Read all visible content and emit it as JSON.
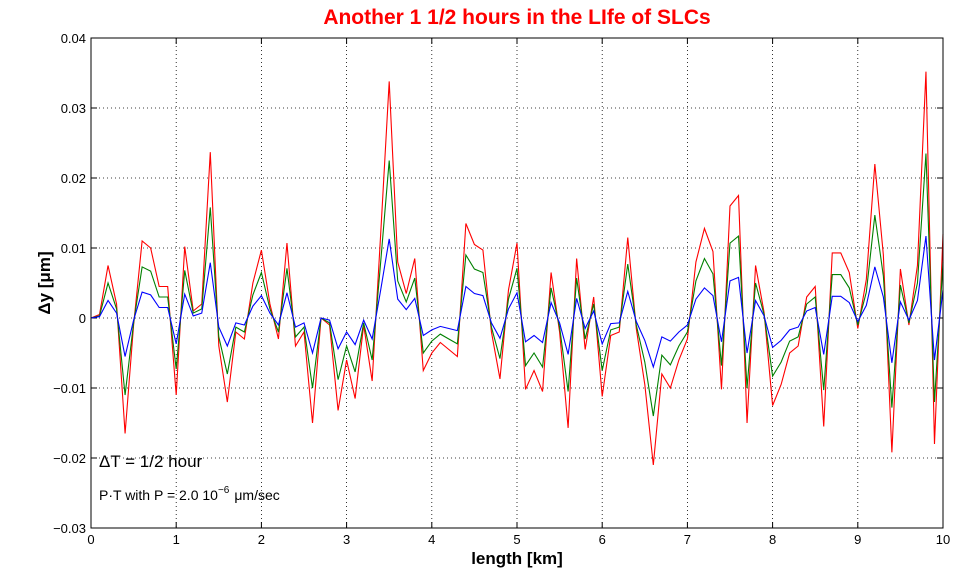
{
  "chart_data": {
    "type": "line",
    "title": "Another 1 1/2 hours in the LIfe of SLCs",
    "xlabel": "length [km]",
    "ylabel": "Δy [μm]",
    "annotations": [
      "ΔT = 1/2 hour",
      [
        "P·T with P = 2.0 10",
        "−6",
        "μm/sec"
      ]
    ],
    "x": [
      0,
      0.1,
      0.2,
      0.3,
      0.4,
      0.5,
      0.6,
      0.7,
      0.8,
      0.9,
      1,
      1.1,
      1.2,
      1.3,
      1.4,
      1.5,
      1.6,
      1.7,
      1.8,
      1.9,
      2,
      2.1,
      2.2,
      2.3,
      2.4,
      2.5,
      2.6,
      2.7,
      2.8,
      2.9,
      3,
      3.1,
      3.2,
      3.3,
      3.4,
      3.5,
      3.6,
      3.7,
      3.8,
      3.9,
      4,
      4.1,
      4.2,
      4.3,
      4.4,
      4.5,
      4.6,
      4.7,
      4.8,
      4.9,
      5,
      5.1,
      5.2,
      5.3,
      5.4,
      5.5,
      5.6,
      5.7,
      5.8,
      5.9,
      6,
      6.1,
      6.2,
      6.3,
      6.4,
      6.5,
      6.6,
      6.7,
      6.8,
      6.9,
      7,
      7.1,
      7.2,
      7.3,
      7.4,
      7.5,
      7.6,
      7.7,
      7.8,
      7.9,
      8,
      8.1,
      8.2,
      8.3,
      8.4,
      8.5,
      8.6,
      8.7,
      8.8,
      8.9,
      9,
      9.1,
      9.2,
      9.3,
      9.4,
      9.5,
      9.6,
      9.7,
      9.8,
      9.9,
      10
    ],
    "series": [
      {
        "color": "#ff0000",
        "values": [
          0,
          0.0005,
          0.0075,
          0.002,
          -0.0165,
          -0.001,
          0.011,
          0.01,
          0.0045,
          0.0045,
          -0.011,
          0.0102,
          0.001,
          0.002,
          0.0237,
          -0.004,
          -0.012,
          -0.002,
          -0.003,
          0.005,
          0.0097,
          0.002,
          -0.003,
          0.0107,
          -0.004,
          -0.002,
          -0.015,
          0,
          -0.001,
          -0.0132,
          -0.006,
          -0.0115,
          -0.001,
          -0.009,
          0.012,
          0.0338,
          0.008,
          0.0035,
          0.0085,
          -0.0075,
          -0.005,
          -0.0035,
          -0.0045,
          -0.0055,
          0.0135,
          0.0105,
          0.0097,
          -0.002,
          -0.0087,
          0.004,
          0.0107,
          -0.0102,
          -0.0075,
          -0.0105,
          0.0065,
          -0.002,
          -0.0157,
          0.0085,
          -0.0045,
          0.003,
          -0.0112,
          -0.0025,
          -0.002,
          0.0115,
          -0.0015,
          -0.0095,
          -0.021,
          -0.008,
          -0.01,
          -0.006,
          -0.003,
          0.008,
          0.0128,
          0.0095,
          -0.0102,
          0.016,
          0.0175,
          -0.015,
          0.0075,
          0.0008,
          -0.0125,
          -0.0095,
          -0.005,
          -0.004,
          0.003,
          0.0045,
          -0.0155,
          0.0093,
          0.0093,
          0.0065,
          -0.0015,
          0.0055,
          0.022,
          0.009,
          -0.0192,
          0.007,
          -0.001,
          0.0075,
          0.0352,
          -0.018,
          0.012
        ]
      },
      {
        "color": "#008000",
        "values": [
          0,
          0.0003,
          0.005,
          0.0013,
          -0.011,
          -0.0007,
          0.0073,
          0.0067,
          0.003,
          0.003,
          -0.0073,
          0.0068,
          0.0007,
          0.0013,
          0.0158,
          -0.0027,
          -0.008,
          -0.0013,
          -0.002,
          0.0033,
          0.0065,
          0.0013,
          -0.002,
          0.0071,
          -0.0027,
          -0.0013,
          -0.01,
          0,
          -0.0007,
          -0.0088,
          -0.004,
          -0.0077,
          -0.0007,
          -0.006,
          0.008,
          0.0225,
          0.0053,
          0.0023,
          0.0057,
          -0.005,
          -0.0033,
          -0.0023,
          -0.003,
          -0.0037,
          0.009,
          0.007,
          0.0065,
          -0.0013,
          -0.0058,
          0.0027,
          0.0071,
          -0.0068,
          -0.005,
          -0.007,
          0.0043,
          -0.0013,
          -0.0105,
          0.0057,
          -0.003,
          0.002,
          -0.0075,
          -0.0017,
          -0.0013,
          0.0077,
          -0.001,
          -0.0063,
          -0.014,
          -0.0053,
          -0.0067,
          -0.004,
          -0.002,
          0.0053,
          0.0085,
          0.0063,
          -0.0068,
          0.0107,
          0.0117,
          -0.01,
          0.005,
          0.0005,
          -0.0083,
          -0.0063,
          -0.0033,
          -0.0027,
          0.002,
          0.003,
          -0.0103,
          0.0062,
          0.0062,
          0.0043,
          -0.001,
          0.0037,
          0.0147,
          0.006,
          -0.0128,
          0.0047,
          -0.0007,
          0.005,
          0.0235,
          -0.012,
          0.008
        ]
      },
      {
        "color": "#0000ff",
        "values": [
          0,
          0.0002,
          0.0025,
          0.0007,
          -0.0055,
          -0.0003,
          0.0037,
          0.0033,
          0.0015,
          0.0015,
          -0.0037,
          0.0034,
          0.0003,
          0.0007,
          0.0079,
          -0.0013,
          -0.004,
          -0.0007,
          -0.001,
          0.0017,
          0.0032,
          0.0007,
          -0.001,
          0.0036,
          -0.0013,
          -0.0007,
          -0.005,
          0,
          -0.0003,
          -0.0044,
          -0.002,
          -0.0038,
          -0.0003,
          -0.003,
          0.004,
          0.0113,
          0.0027,
          0.0012,
          0.0028,
          -0.0025,
          -0.0017,
          -0.0012,
          -0.0015,
          -0.0018,
          0.0045,
          0.0035,
          0.0032,
          -0.0007,
          -0.0029,
          0.0013,
          0.0036,
          -0.0034,
          -0.0025,
          -0.0035,
          0.0022,
          -0.0007,
          -0.0052,
          0.0028,
          -0.0015,
          0.001,
          -0.0037,
          -0.0008,
          -0.0007,
          0.0038,
          -0.0005,
          -0.0032,
          -0.007,
          -0.0027,
          -0.0033,
          -0.002,
          -0.001,
          0.0027,
          0.0043,
          0.0032,
          -0.0034,
          0.0053,
          0.0058,
          -0.005,
          0.0025,
          0.0003,
          -0.0042,
          -0.0032,
          -0.0017,
          -0.0013,
          0.001,
          0.0015,
          -0.0052,
          0.0031,
          0.0031,
          0.0022,
          -0.0005,
          0.0018,
          0.0073,
          0.003,
          -0.0064,
          0.0023,
          -0.0003,
          0.0025,
          0.0117,
          -0.006,
          0.004
        ]
      }
    ],
    "xlim": [
      0,
      10
    ],
    "xticks": [
      0,
      1,
      2,
      3,
      4,
      5,
      6,
      7,
      8,
      9,
      10
    ],
    "ylim": [
      -0.03,
      0.04
    ],
    "yticks": [
      {
        "value": -0.03,
        "label": "−0.03"
      },
      {
        "value": -0.02,
        "label": "−0.02"
      },
      {
        "value": -0.01,
        "label": "−0.01"
      },
      0,
      0.01,
      0.02,
      0.03,
      0.04
    ],
    "grid": true
  }
}
